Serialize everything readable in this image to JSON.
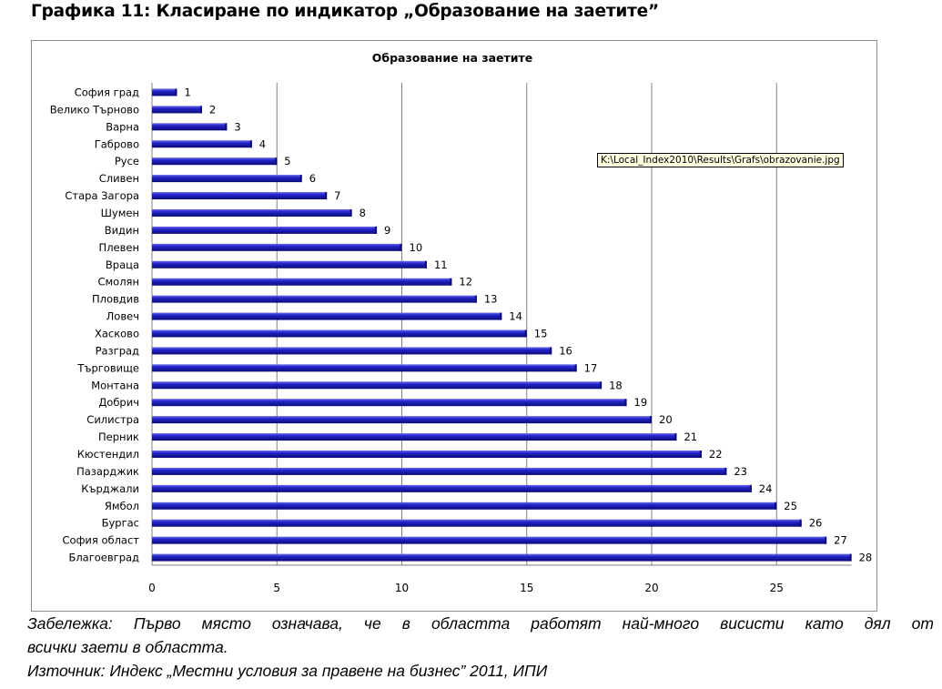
{
  "heading": "Графика 11: Класиране по индикатор „Образование на заетите”",
  "tooltip": "K:\\Local_Index2010\\Results\\Grafs\\obrazovanie.jpg",
  "note_line1": "Забележка: Първо място означава, че в областта работят най-много висисти като дял от",
  "note_line2": "всички заети в областта.",
  "source_line": "Източник: Индекс „Местни условия за правене на бизнес” 2011, ИПИ",
  "colors": {
    "bar": "#2424c8",
    "bar_dark": "#0b0b7a",
    "bar_light": "#6a6af0",
    "grid": "#808080"
  },
  "chart_data": {
    "type": "bar",
    "orientation": "horizontal",
    "title": "Образование на заетите",
    "categories": [
      "София град",
      "Велико Търново",
      "Варна",
      "Габрово",
      "Русе",
      "Сливен",
      "Стара Загора",
      "Шумен",
      "Видин",
      "Плевен",
      "Враца",
      "Смолян",
      "Пловдив",
      "Ловеч",
      "Хасково",
      "Разград",
      "Търговище",
      "Монтана",
      "Добрич",
      "Силистра",
      "Перник",
      "Кюстендил",
      "Пазарджик",
      "Кърджали",
      "Ямбол",
      "Бургас",
      "София област",
      "Благоевград"
    ],
    "values": [
      1,
      2,
      3,
      4,
      5,
      6,
      7,
      8,
      9,
      10,
      11,
      12,
      13,
      14,
      15,
      16,
      17,
      18,
      19,
      20,
      21,
      22,
      23,
      24,
      25,
      26,
      27,
      28
    ],
    "xticks": [
      0,
      5,
      10,
      15,
      20,
      25
    ],
    "xlim": [
      0,
      28
    ],
    "grid": true,
    "data_labels": true
  }
}
